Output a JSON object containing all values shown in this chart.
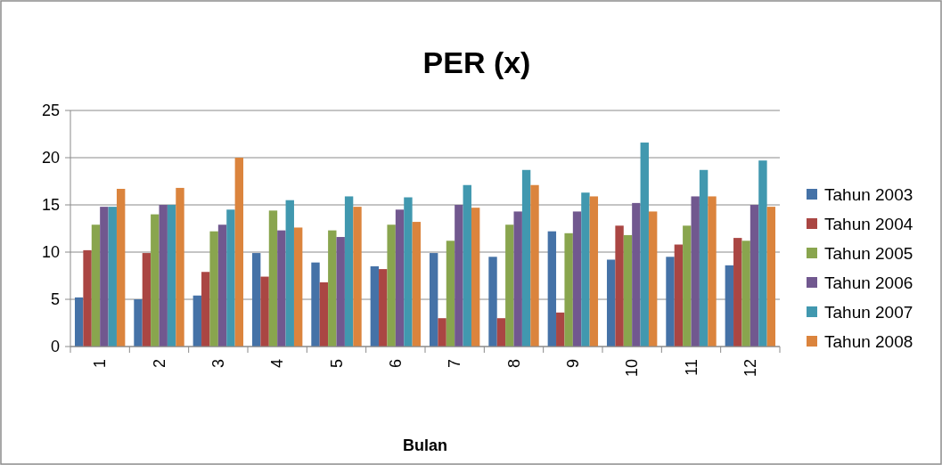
{
  "chart_data": {
    "type": "bar",
    "title": "PER (x)",
    "xlabel": "Bulan",
    "categories": [
      "1",
      "2",
      "3",
      "4",
      "5",
      "6",
      "7",
      "8",
      "9",
      "10",
      "11",
      "12"
    ],
    "series": [
      {
        "name": "Tahun 2003",
        "color": "#4572a7",
        "values": [
          5.2,
          5.0,
          5.4,
          9.9,
          8.9,
          8.5,
          9.9,
          9.5,
          12.2,
          9.2,
          9.5,
          8.6
        ]
      },
      {
        "name": "Tahun 2004",
        "color": "#aa4643",
        "values": [
          10.2,
          9.9,
          7.9,
          7.4,
          6.8,
          8.2,
          3.0,
          3.0,
          3.6,
          12.8,
          10.8,
          11.5
        ]
      },
      {
        "name": "Tahun 2005",
        "color": "#89a54e",
        "values": [
          12.9,
          14.0,
          12.2,
          14.4,
          12.3,
          12.9,
          11.2,
          12.9,
          12.0,
          11.8,
          12.8,
          11.2
        ]
      },
      {
        "name": "Tahun 2006",
        "color": "#71588f",
        "values": [
          14.8,
          15.0,
          12.9,
          12.3,
          11.6,
          14.5,
          15.0,
          14.3,
          14.3,
          15.2,
          15.9,
          15.0
        ]
      },
      {
        "name": "Tahun 2007",
        "color": "#4198af",
        "values": [
          14.8,
          15.0,
          14.5,
          15.5,
          15.9,
          15.8,
          17.1,
          18.7,
          16.3,
          21.6,
          18.7,
          19.7
        ]
      },
      {
        "name": "Tahun 2008",
        "color": "#db843d",
        "values": [
          16.7,
          16.8,
          20.0,
          12.6,
          14.8,
          13.2,
          14.7,
          17.1,
          15.9,
          14.3,
          15.9,
          14.8
        ]
      }
    ],
    "ylim": [
      0,
      25
    ],
    "yticks": [
      0,
      5,
      10,
      15,
      20,
      25
    ],
    "grid": "y",
    "legend": "right"
  }
}
